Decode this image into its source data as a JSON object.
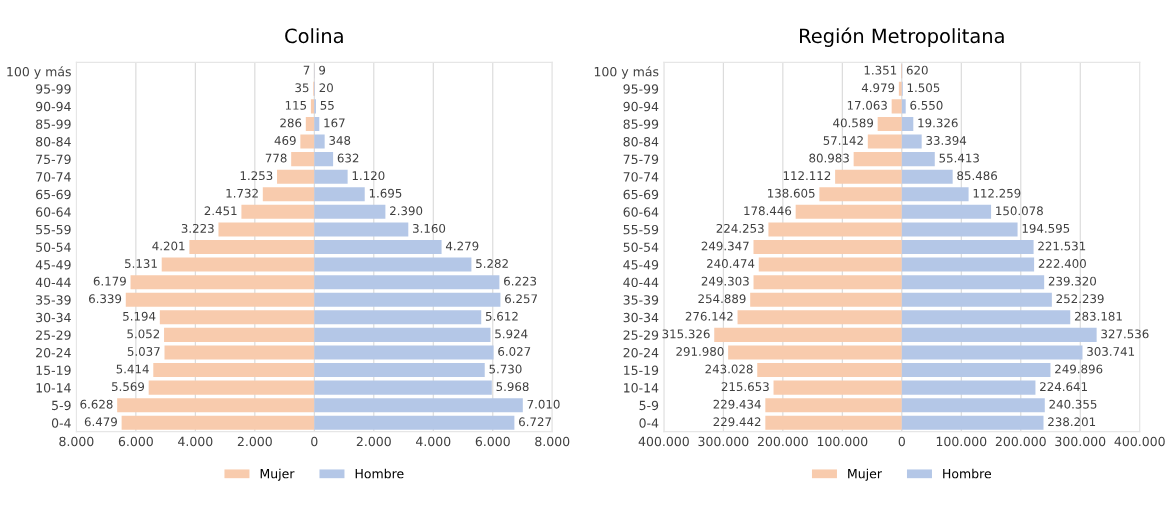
{
  "chart_data": [
    {
      "type": "bar",
      "orientation": "horizontal",
      "title": "Colina",
      "categories": [
        "100 y más",
        "95-99",
        "90-94",
        "85-99",
        "80-84",
        "75-79",
        "70-74",
        "65-69",
        "60-64",
        "55-59",
        "50-54",
        "45-49",
        "40-44",
        "35-39",
        "30-34",
        "25-29",
        "20-24",
        "15-19",
        "10-14",
        "5-9",
        "0-4"
      ],
      "series": [
        {
          "name": "Mujer",
          "color": "#f8cbad",
          "base": [
            -7,
            -35,
            -115,
            -286,
            -469,
            -778,
            -1253,
            -1732,
            -2451,
            -3223,
            -4201,
            -5131,
            -6179,
            -6339,
            -5194,
            -5052,
            -5037,
            -5414,
            -5569,
            -6628,
            -6479
          ],
          "values": [
            7,
            35,
            115,
            286,
            469,
            778,
            1253,
            1732,
            2451,
            3223,
            4201,
            5131,
            6179,
            6339,
            5194,
            5052,
            5037,
            5414,
            5569,
            6628,
            6479
          ],
          "value_labels": [
            "7",
            "35",
            "115",
            "286",
            "469",
            "778",
            "1.253",
            "1.732",
            "2.451",
            "3.223",
            "4.201",
            "5.131",
            "6.179",
            "6.339",
            "5.194",
            "5.052",
            "5.037",
            "5.414",
            "5.569",
            "6.628",
            "6.479"
          ]
        },
        {
          "name": "Hombre",
          "color": "#b4c7e7",
          "values": [
            9,
            20,
            55,
            167,
            348,
            632,
            1120,
            1695,
            2390,
            3160,
            4279,
            5282,
            6223,
            6257,
            5612,
            5924,
            6027,
            5730,
            5968,
            7010,
            6727
          ],
          "value_labels": [
            "9",
            "20",
            "55",
            "167",
            "348",
            "632",
            "1.120",
            "1.695",
            "2.390",
            "3.160",
            "4.279",
            "5.282",
            "6.223",
            "6.257",
            "5.612",
            "5.924",
            "6.027",
            "5.730",
            "5.968",
            "7.010",
            "6.727"
          ]
        }
      ],
      "xlim": [
        -8000,
        8000
      ],
      "xticks": [
        {
          "value": -8000,
          "label": "8.000"
        },
        {
          "value": -6000,
          "label": "6.000"
        },
        {
          "value": -4000,
          "label": "4.000"
        },
        {
          "value": -2000,
          "label": "2.000"
        },
        0,
        {
          "value": 2000,
          "label": "2.000"
        },
        {
          "value": 4000,
          "label": "4.000"
        },
        {
          "value": 6000,
          "label": "6.000"
        },
        {
          "value": 8000,
          "label": "8.000"
        }
      ],
      "grid": "x",
      "legend": "bottom"
    },
    {
      "type": "bar",
      "orientation": "horizontal",
      "title": "Región Metropolitana",
      "categories": [
        "100 y más",
        "95-99",
        "90-94",
        "85-99",
        "80-84",
        "75-79",
        "70-74",
        "65-69",
        "60-64",
        "55-59",
        "50-54",
        "45-49",
        "40-44",
        "35-39",
        "30-34",
        "25-29",
        "20-24",
        "15-19",
        "10-14",
        "5-9",
        "0-4"
      ],
      "series": [
        {
          "name": "Mujer",
          "color": "#f8cbad",
          "base": [
            -1351,
            -4979,
            -17063,
            -40589,
            -57142,
            -80983,
            -112112,
            -138605,
            -178446,
            -224253,
            -249347,
            -240474,
            -249303,
            -254889,
            -276142,
            -315326,
            -291980,
            -243028,
            -215653,
            -229434,
            -229442
          ],
          "values": [
            1351,
            4979,
            17063,
            40589,
            57142,
            80983,
            112112,
            138605,
            178446,
            224253,
            249347,
            240474,
            249303,
            254889,
            276142,
            315326,
            291980,
            243028,
            215653,
            229434,
            229442
          ],
          "value_labels": [
            "1.351",
            "4.979",
            "17.063",
            "40.589",
            "57.142",
            "80.983",
            "112.112",
            "138.605",
            "178.446",
            "224.253",
            "249.347",
            "240.474",
            "249.303",
            "254.889",
            "276.142",
            "315.326",
            "291.980",
            "243.028",
            "215.653",
            "229.434",
            "229.442"
          ]
        },
        {
          "name": "Hombre",
          "color": "#b4c7e7",
          "values": [
            620,
            1505,
            6550,
            19326,
            33394,
            55413,
            85486,
            112259,
            150078,
            194595,
            221531,
            222400,
            239320,
            252239,
            283181,
            327536,
            303741,
            249896,
            224641,
            240355,
            238201
          ],
          "value_labels": [
            "620",
            "1.505",
            "6.550",
            "19.326",
            "33.394",
            "55.413",
            "85.486",
            "112.259",
            "150.078",
            "194.595",
            "221.531",
            "222.400",
            "239.320",
            "252.239",
            "283.181",
            "327.536",
            "303.741",
            "249.896",
            "224.641",
            "240.355",
            "238.201"
          ]
        }
      ],
      "xlim": [
        -400000,
        400000
      ],
      "xticks": [
        {
          "value": -400000,
          "label": "400.000"
        },
        {
          "value": -300000,
          "label": "300.000"
        },
        {
          "value": -200000,
          "label": "200.000"
        },
        {
          "value": -100000,
          "label": "100.000"
        },
        0,
        {
          "value": 100000,
          "label": "100.000"
        },
        {
          "value": 200000,
          "label": "200.000"
        },
        {
          "value": 300000,
          "label": "300.000"
        },
        {
          "value": 400000,
          "label": "400.000"
        }
      ],
      "grid": "x",
      "legend": "bottom"
    }
  ]
}
